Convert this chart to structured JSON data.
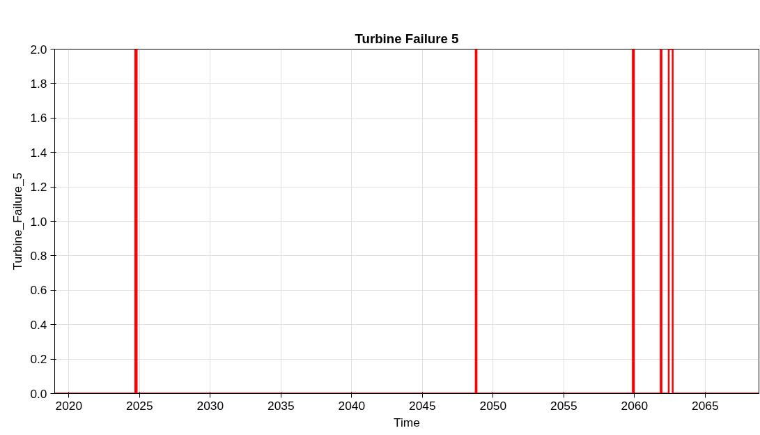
{
  "chart_data": {
    "type": "step",
    "title": "Turbine Failure 5",
    "xlabel": "Time",
    "ylabel": "Turbine_Failure_5",
    "x": [
      2019,
      2024.7,
      2024.8,
      2048.77,
      2048.83,
      2059.88,
      2059.96,
      2061.85,
      2061.91,
      2062.42,
      2062.7,
      2068.8
    ],
    "series": [
      {
        "color": "#ff0000",
        "values": [
          0,
          2,
          0,
          2,
          0,
          2,
          0,
          2,
          0,
          2,
          0,
          0
        ]
      }
    ],
    "xlim": [
      2019,
      2068.8
    ],
    "xticks": [
      2020,
      2025,
      2030,
      2035,
      2040,
      2045,
      2050,
      2055,
      2060,
      2065
    ],
    "ylim": [
      0,
      2
    ],
    "yticks": [
      {
        "value": 0,
        "label": "0.0"
      },
      {
        "value": 0.2,
        "label": "0.2"
      },
      {
        "value": 0.4,
        "label": "0.4"
      },
      {
        "value": 0.6,
        "label": "0.6"
      },
      {
        "value": 0.8,
        "label": "0.8"
      },
      {
        "value": 1,
        "label": "1.0"
      },
      {
        "value": 1.2,
        "label": "1.2"
      },
      {
        "value": 1.4,
        "label": "1.4"
      },
      {
        "value": 1.6,
        "label": "1.6"
      },
      {
        "value": 1.8,
        "label": "1.8"
      },
      {
        "value": 2,
        "label": "2.0"
      }
    ],
    "grid": true
  }
}
